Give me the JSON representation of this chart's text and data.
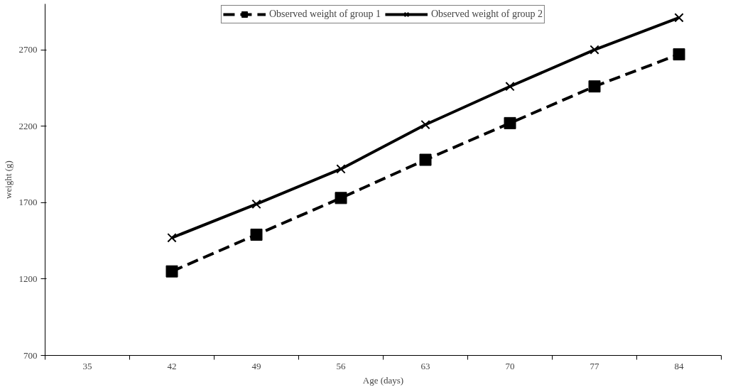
{
  "chart_data": {
    "type": "line",
    "xlabel": "Age (days)",
    "ylabel": "weight (g)",
    "categories": [
      "35",
      "42",
      "49",
      "56",
      "63",
      "70",
      "77",
      "84"
    ],
    "series": [
      {
        "name": "Observed weight of group 1",
        "color": "#000000",
        "marker": "square",
        "line_style": "dashed",
        "values": [
          null,
          1250,
          1490,
          1730,
          1980,
          2220,
          2460,
          2670
        ]
      },
      {
        "name": "Observed weight of group 2",
        "color": "#000000",
        "marker": "cross",
        "line_style": "solid",
        "values": [
          null,
          1470,
          1690,
          1920,
          2210,
          2460,
          2700,
          2910
        ]
      }
    ],
    "ylim": [
      700,
      3000
    ],
    "yticks": [
      700,
      1200,
      1700,
      2200,
      2700
    ],
    "grid": false,
    "legend": "top"
  }
}
